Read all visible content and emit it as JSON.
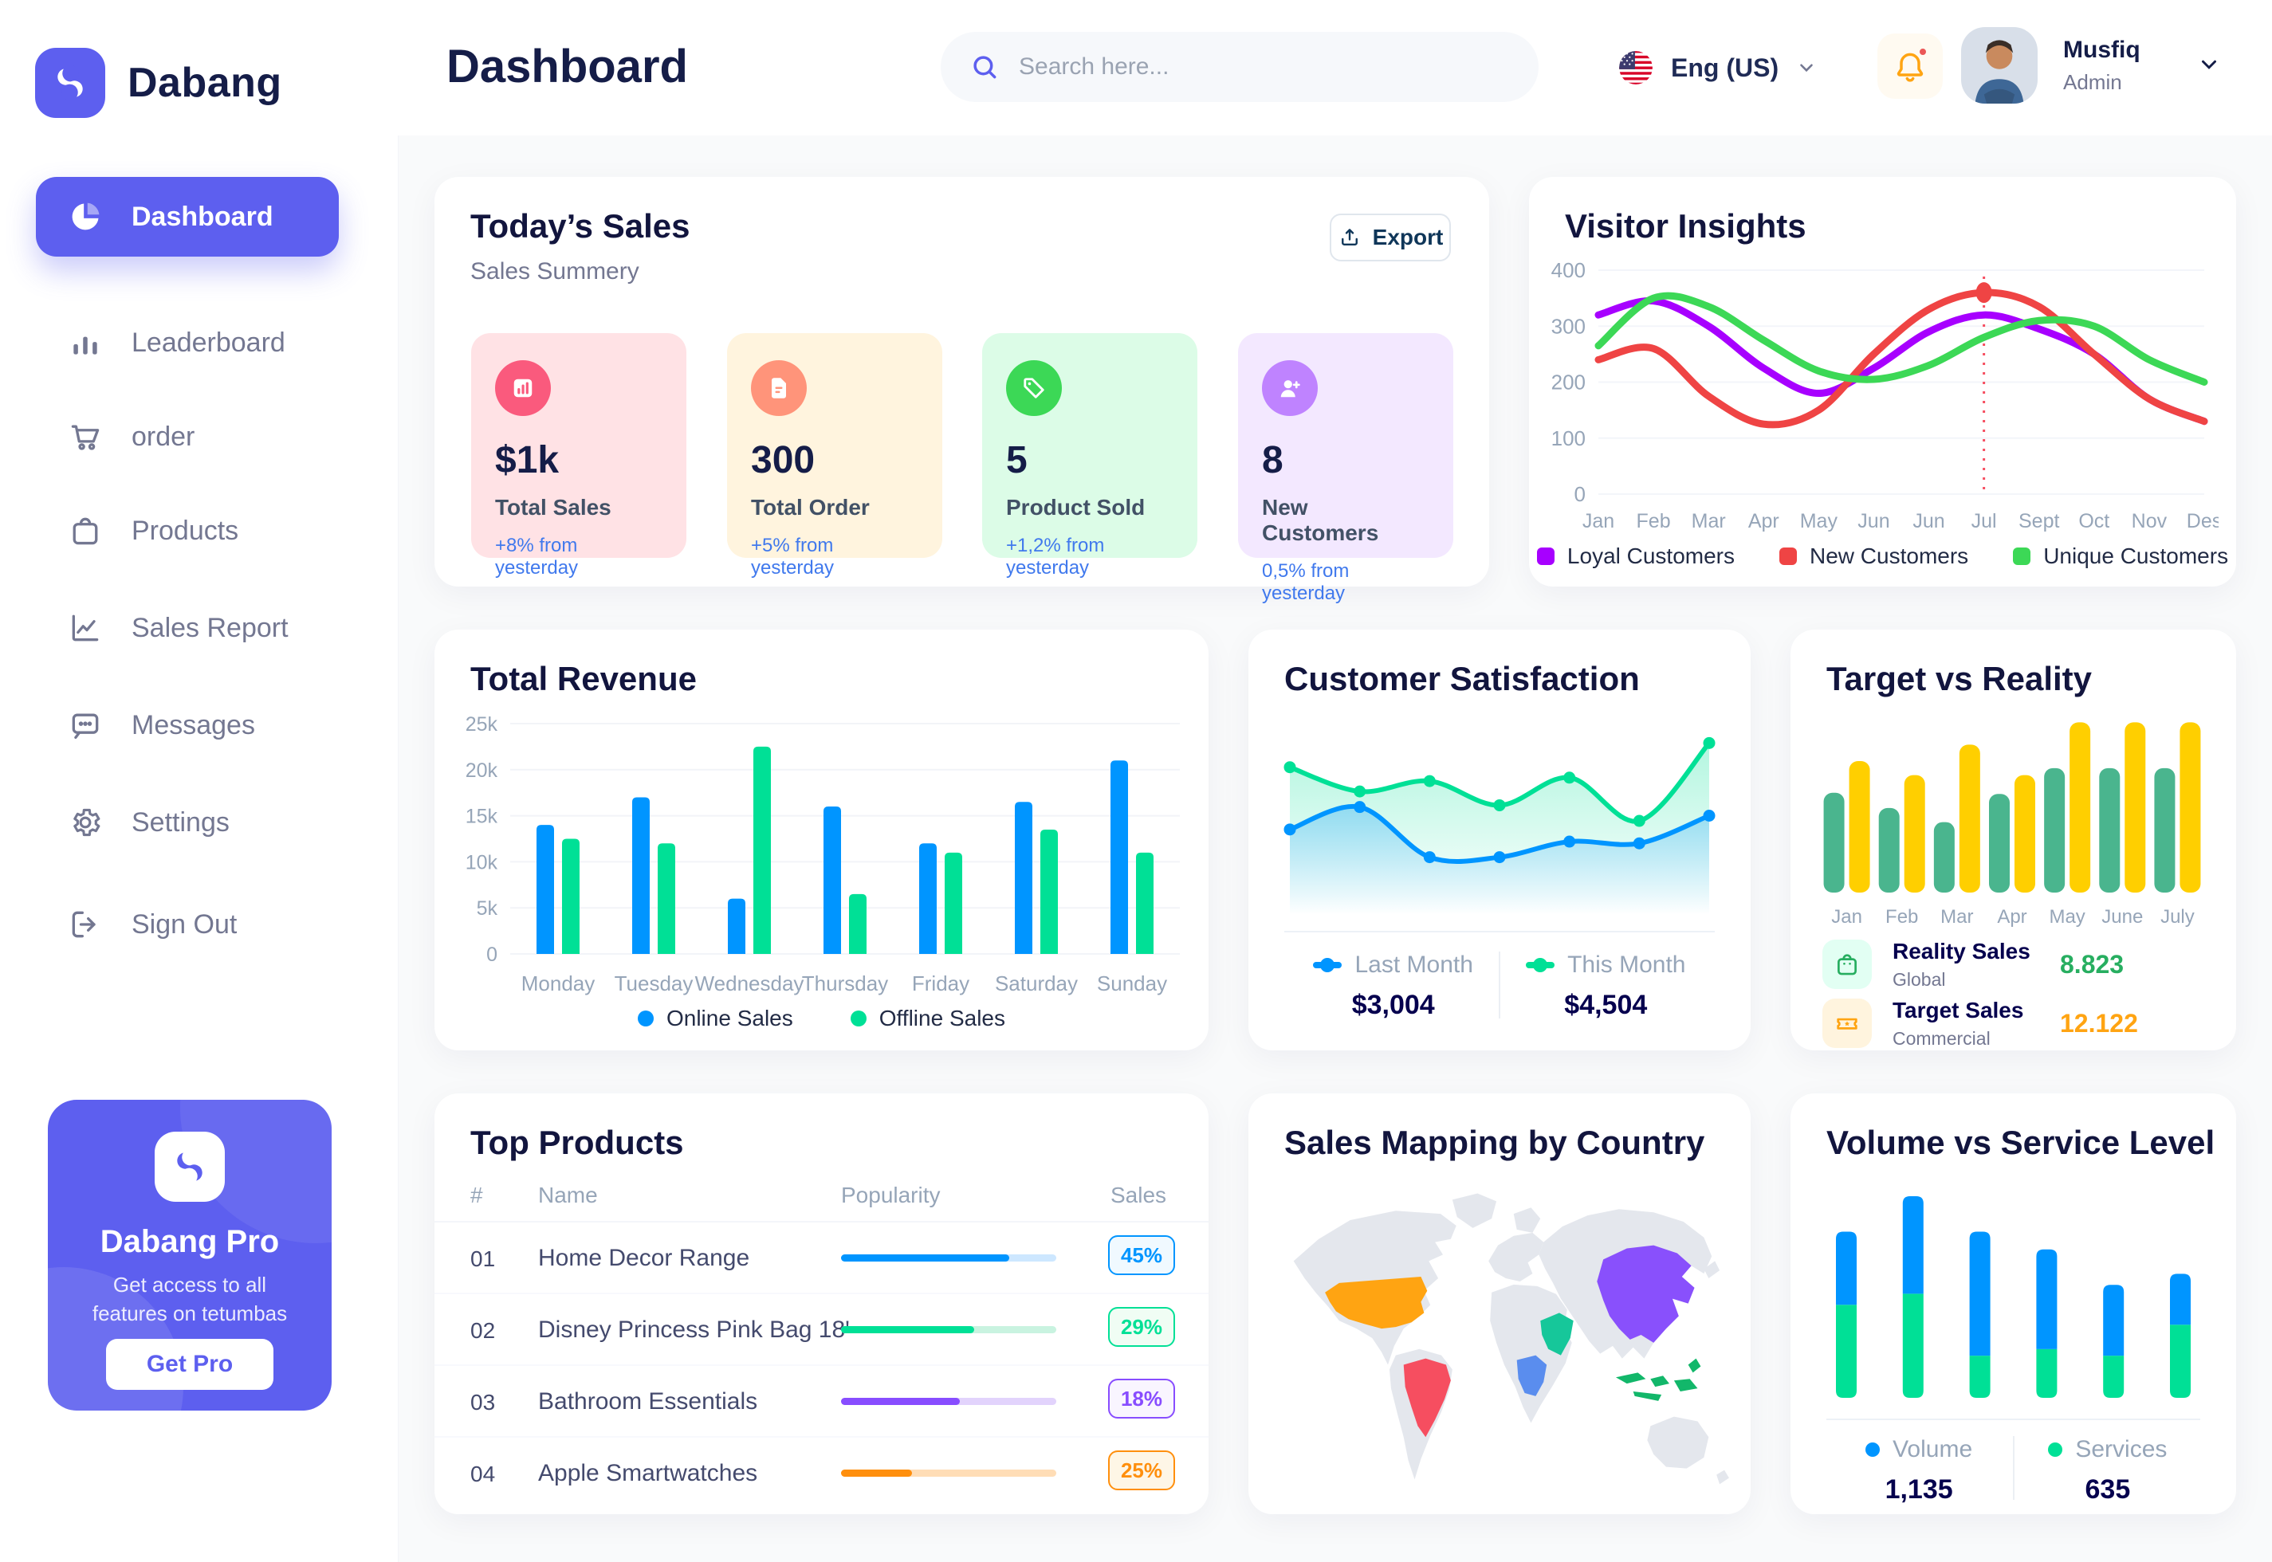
{
  "app": {
    "brand": "Dabang"
  },
  "colors": {
    "primary": "#5D5FEF",
    "navy": "#151D48",
    "gray": "#737791",
    "content_bg": "#F9FAFB"
  },
  "header": {
    "page_title": "Dashboard",
    "search_placeholder": "Search here...",
    "language": "Eng (US)",
    "user": {
      "name": "Musfiq",
      "role": "Admin"
    }
  },
  "sidebar": {
    "items": [
      {
        "label": "Dashboard",
        "active": true
      },
      {
        "label": "Leaderboard",
        "active": false
      },
      {
        "label": "order",
        "active": false
      },
      {
        "label": "Products",
        "active": false
      },
      {
        "label": "Sales Report",
        "active": false
      },
      {
        "label": "Messages",
        "active": false
      },
      {
        "label": "Settings",
        "active": false
      },
      {
        "label": "Sign Out",
        "active": false
      }
    ],
    "pro": {
      "title": "Dabang Pro",
      "desc": "Get access to all features on tetumbas",
      "cta": "Get Pro"
    }
  },
  "todays_sales": {
    "title": "Today’s Sales",
    "subtitle": "Sales Summery",
    "export_label": "Export",
    "cards": [
      {
        "value": "$1k",
        "label": "Total Sales",
        "delta": "+8% from yesterday",
        "bg": "#FFE2E5",
        "icon_bg": "#FA5A7D",
        "icon": "bar-graph"
      },
      {
        "value": "300",
        "label": "Total Order",
        "delta": "+5% from yesterday",
        "bg": "#FFF4DE",
        "icon_bg": "#FF947A",
        "icon": "order-file"
      },
      {
        "value": "5",
        "label": "Product Sold",
        "delta": "+1,2% from yesterday",
        "bg": "#DCFCE7",
        "icon_bg": "#3CD856",
        "icon": "tag"
      },
      {
        "value": "8",
        "label": "New Customers",
        "delta": "0,5% from yesterday",
        "bg": "#F3E8FF",
        "icon_bg": "#BF83FF",
        "icon": "user-plus"
      }
    ],
    "delta_color": "#4079ED"
  },
  "top_products": {
    "title": "Top Products",
    "headers": {
      "num": "#",
      "name": "Name",
      "popularity": "Popularity",
      "sales": "Sales"
    },
    "rows": [
      {
        "num": "01",
        "name": "Home Decor Range",
        "popularity_pct": 78,
        "sales": "45%",
        "color": "#0095FF",
        "track": "#CDE7FF",
        "badge_bg": "#F0F9FF"
      },
      {
        "num": "02",
        "name": "Disney Princess Pink Bag 18'",
        "popularity_pct": 62,
        "sales": "29%",
        "color": "#00E096",
        "track": "#C9F3E0",
        "badge_bg": "#F0FDF4"
      },
      {
        "num": "03",
        "name": "Bathroom Essentials",
        "popularity_pct": 55,
        "sales": "18%",
        "color": "#884DFF",
        "track": "#E2D3FC",
        "badge_bg": "#F9F5FF"
      },
      {
        "num": "04",
        "name": "Apple Smartwatches",
        "popularity_pct": 33,
        "sales": "25%",
        "color": "#FF8F0D",
        "track": "#FFDDB6",
        "badge_bg": "#FEF6E6"
      }
    ]
  },
  "sales_mapping": {
    "title": "Sales Mapping by Country",
    "countries": [
      {
        "name": "United States",
        "color": "#FFA412"
      },
      {
        "name": "Brazil",
        "color": "#F64E60"
      },
      {
        "name": "Saudi Arabia",
        "color": "#16C79A"
      },
      {
        "name": "DR Congo",
        "color": "#5A8DEE"
      },
      {
        "name": "China",
        "color": "#8950FC"
      },
      {
        "name": "Indonesia",
        "color": "#12B76A"
      }
    ],
    "land_color": "#E4E7ED"
  },
  "chart_data": [
    {
      "id": "visitor_insights",
      "type": "line",
      "title": "Visitor Insights",
      "x": [
        "Jan",
        "Feb",
        "Mar",
        "Apr",
        "May",
        "Jun",
        "Jun",
        "Jul",
        "Sept",
        "Oct",
        "Nov",
        "Des"
      ],
      "yticks": [
        0,
        100,
        200,
        300,
        400
      ],
      "ylim": [
        0,
        400
      ],
      "grid": true,
      "legend_position": "bottom",
      "series": [
        {
          "name": "Loyal Customers",
          "color": "#A700FF",
          "values": [
            320,
            345,
            300,
            225,
            180,
            225,
            290,
            320,
            295,
            250,
            170,
            130
          ]
        },
        {
          "name": "New Customers",
          "color": "#EF4444",
          "values": [
            240,
            260,
            175,
            125,
            150,
            250,
            330,
            360,
            335,
            250,
            170,
            130
          ]
        },
        {
          "name": "Unique Customers",
          "color": "#3CD856",
          "values": [
            265,
            350,
            335,
            275,
            220,
            205,
            230,
            280,
            310,
            300,
            240,
            200
          ]
        }
      ],
      "marker": {
        "series_index": 1,
        "index": 7,
        "note": "dotted vertical line at Jul with dot on New Customers peak 360"
      }
    },
    {
      "id": "total_revenue",
      "type": "bar",
      "title": "Total Revenue",
      "categories": [
        "Monday",
        "Tuesday",
        "Wednesday",
        "Thursday",
        "Friday",
        "Saturday",
        "Sunday"
      ],
      "ylabels": [
        "0",
        "5k",
        "10k",
        "15k",
        "20k",
        "25k"
      ],
      "ylim": [
        0,
        25
      ],
      "grid": true,
      "legend_position": "bottom",
      "series": [
        {
          "name": "Online Sales",
          "color": "#0095FF",
          "values": [
            14,
            17,
            6,
            16,
            12,
            16.5,
            21
          ]
        },
        {
          "name": "Offline Sales",
          "color": "#00E096",
          "values": [
            12.5,
            12,
            22.5,
            6.5,
            11,
            13.5,
            11
          ]
        }
      ]
    },
    {
      "id": "customer_satisfaction",
      "type": "area",
      "title": "Customer Satisfaction",
      "x": [
        1,
        2,
        3,
        4,
        5,
        6,
        7
      ],
      "ylim": [
        0,
        100
      ],
      "grid": false,
      "legend_position": "bottom",
      "series": [
        {
          "name": "Last Month",
          "color": "#0095FF",
          "total": "$3,004",
          "values": [
            42,
            55,
            26,
            26,
            35,
            34,
            50
          ]
        },
        {
          "name": "This Month",
          "color": "#00E096",
          "total": "$4,504",
          "values": [
            78,
            64,
            70,
            56,
            72,
            47,
            92
          ]
        }
      ]
    },
    {
      "id": "target_vs_reality",
      "type": "bar",
      "title": "Target vs Reality",
      "categories": [
        "Jan",
        "Feb",
        "Mar",
        "Apr",
        "May",
        "June",
        "July"
      ],
      "ylim": [
        0,
        15
      ],
      "grid": false,
      "series": [
        {
          "name": "Reality Sales",
          "subtitle": "Global",
          "color": "#4AB58E",
          "value_label": "8.823",
          "value_color": "#27AE60",
          "icon_bg": "#E2FFF3",
          "values": [
            8.5,
            7.2,
            6,
            8.4,
            10.6,
            10.6,
            10.6
          ]
        },
        {
          "name": "Target Sales",
          "subtitle": "Commercial",
          "color": "#FFCF00",
          "value_label": "12.122",
          "value_color": "#FFA412",
          "icon_bg": "#FFF4DE",
          "values": [
            11.2,
            10,
            12.6,
            10,
            14.5,
            14.5,
            14.5
          ]
        }
      ]
    },
    {
      "id": "volume_service",
      "type": "stacked-bar",
      "title": "Volume vs Service Level",
      "categories": [
        "1",
        "2",
        "3",
        "4",
        "5",
        "6"
      ],
      "ylim": [
        0,
        100
      ],
      "grid": false,
      "legend_position": "bottom",
      "series": [
        {
          "name": "Volume",
          "color": "#0095FF",
          "total": "1,135",
          "values": [
            33,
            44,
            56,
            45,
            32,
            23
          ]
        },
        {
          "name": "Services",
          "color": "#00E096",
          "total": "635",
          "values": [
            42,
            47,
            19,
            22,
            19,
            33
          ]
        }
      ]
    }
  ]
}
